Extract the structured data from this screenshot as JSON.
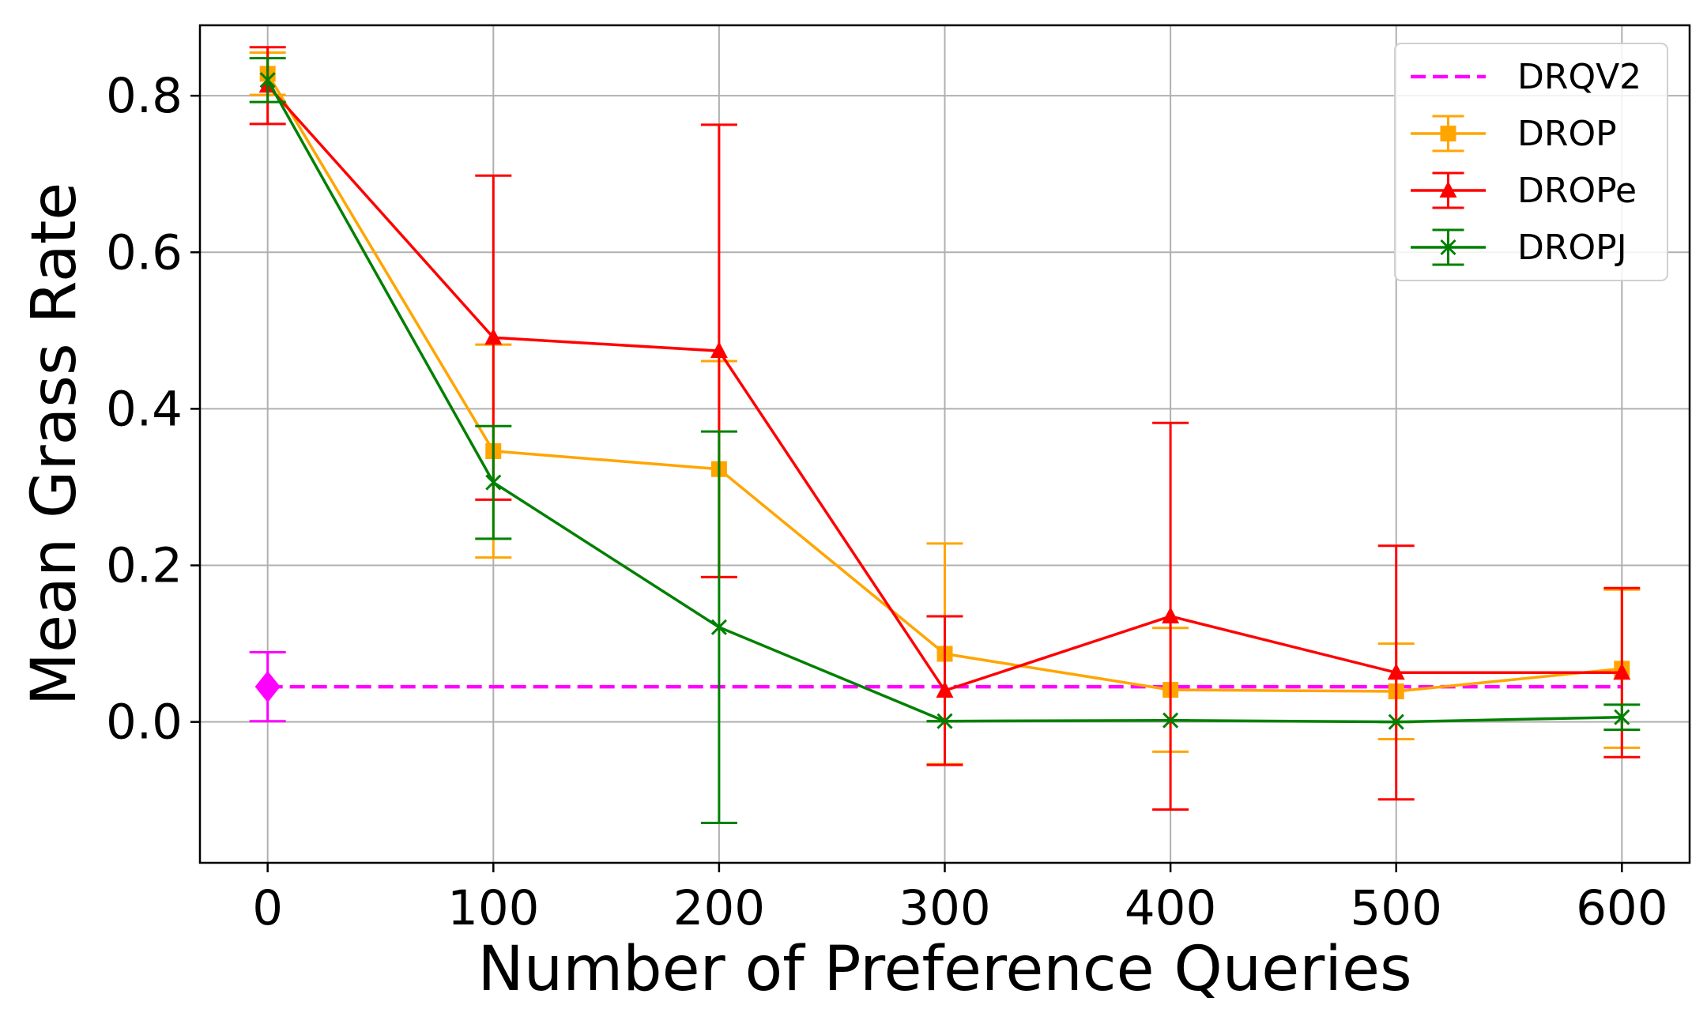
{
  "chart_data": {
    "type": "line",
    "xlabel": "Number of Preference Queries",
    "ylabel": "Mean Grass Rate",
    "xlim": [
      -30,
      630
    ],
    "ylim": [
      -0.18,
      0.89
    ],
    "x_ticks": [
      0,
      100,
      200,
      300,
      400,
      500,
      600
    ],
    "x_tick_labels": [
      "0",
      "100",
      "200",
      "300",
      "400",
      "500",
      "600"
    ],
    "y_ticks": [
      0.0,
      0.2,
      0.4,
      0.6,
      0.8
    ],
    "y_tick_labels": [
      "0.0",
      "0.2",
      "0.4",
      "0.6",
      "0.8"
    ],
    "grid": true,
    "legend_position": "top-right",
    "baseline": {
      "name": "DRQV2",
      "color": "#ff00ff",
      "style": "dashed",
      "x": 0,
      "y": 0.045,
      "err": 0.044,
      "line_x_range": [
        0,
        600
      ]
    },
    "x": [
      0,
      100,
      200,
      300,
      400,
      500,
      600
    ],
    "series": [
      {
        "name": "DROP",
        "color": "#ffa500",
        "marker": "square",
        "values": [
          0.828,
          0.346,
          0.323,
          0.087,
          0.041,
          0.039,
          0.068
        ],
        "errors": [
          0.027,
          0.136,
          0.138,
          0.141,
          0.079,
          0.061,
          0.101
        ]
      },
      {
        "name": "DROPe",
        "color": "#ff0000",
        "marker": "triangle",
        "values": [
          0.813,
          0.491,
          0.474,
          0.04,
          0.135,
          0.063,
          0.063
        ],
        "errors": [
          0.049,
          0.207,
          0.289,
          0.095,
          0.247,
          0.162,
          0.108
        ]
      },
      {
        "name": "DROPJ",
        "color": "#008000",
        "marker": "x",
        "values": [
          0.82,
          0.306,
          0.121,
          0.001,
          0.002,
          0.0,
          0.006
        ],
        "errors": [
          0.028,
          0.072,
          0.25,
          0.0,
          0.0,
          0.0,
          0.016
        ]
      }
    ]
  }
}
